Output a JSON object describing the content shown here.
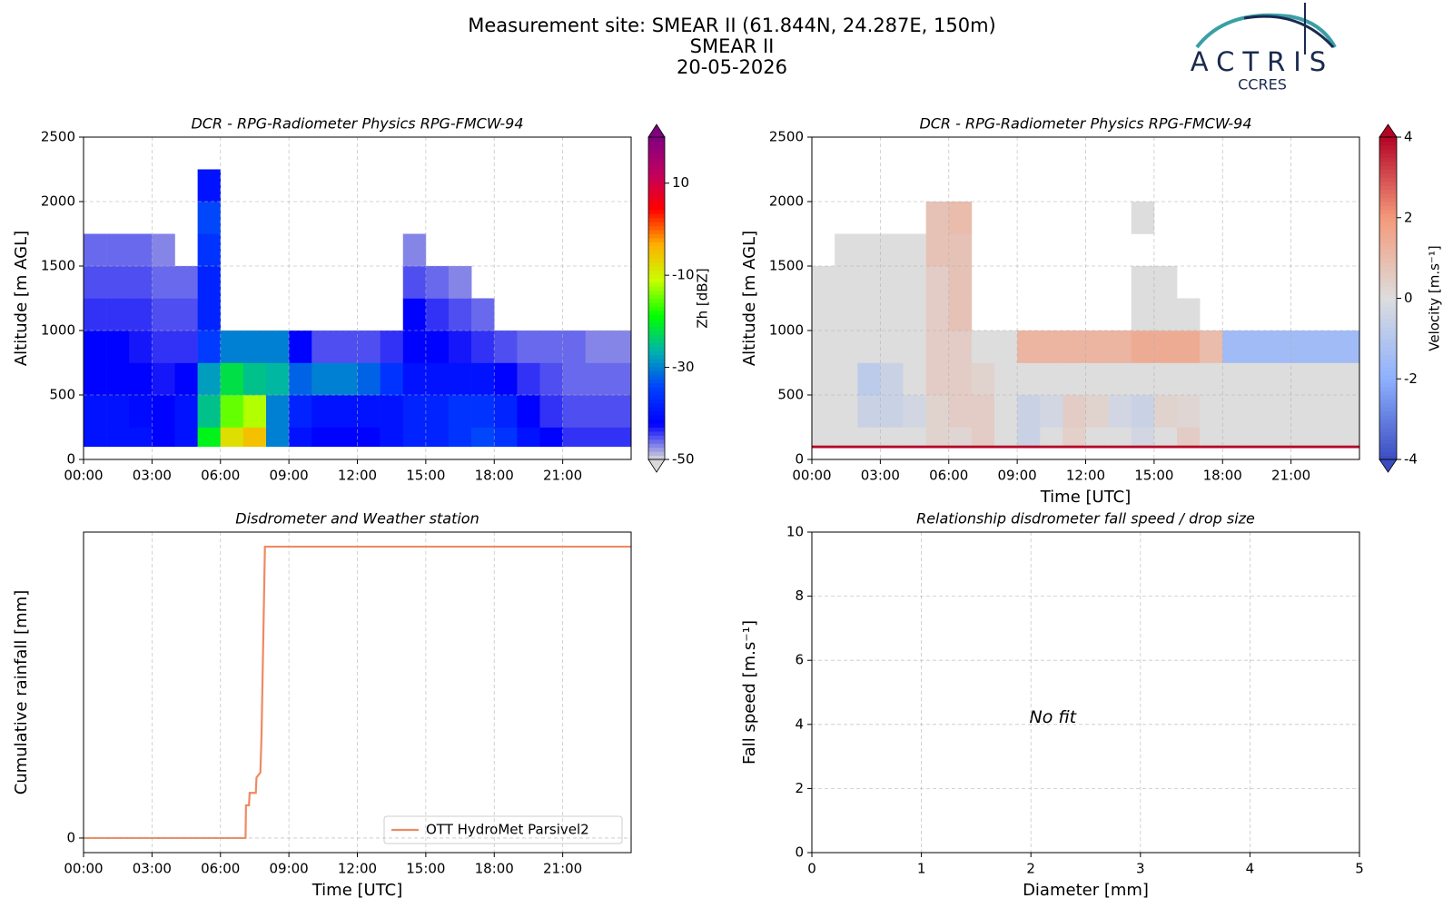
{
  "header": {
    "title": [
      "Measurement site: SMEAR II (61.844N, 24.287E, 150m)",
      "SMEAR II",
      "20-05-2026"
    ]
  },
  "logo": {
    "name": "ACTRIS",
    "subtitle": "CCRES"
  },
  "chart_data": [
    {
      "type": "heatmap",
      "title": "DCR - RPG-Radiometer Physics RPG-FMCW-94",
      "ylabel": "Altitude [m AGL]",
      "xlim": [
        0,
        24
      ],
      "xticks": [
        {
          "value": 0,
          "label": "00:00"
        },
        {
          "value": 3,
          "label": "03:00"
        },
        {
          "value": 6,
          "label": "06:00"
        },
        {
          "value": 9,
          "label": "09:00"
        },
        {
          "value": 12,
          "label": "12:00"
        },
        {
          "value": 15,
          "label": "15:00"
        },
        {
          "value": 18,
          "label": "18:00"
        },
        {
          "value": 21,
          "label": "21:00"
        }
      ],
      "ylim": [
        0,
        2500
      ],
      "yticks": [
        0,
        500,
        1000,
        1500,
        2000,
        2500
      ],
      "grid": true,
      "time_bins": [
        0,
        1,
        2,
        3,
        4,
        5,
        6,
        7,
        8,
        9,
        10,
        11,
        12,
        13,
        14,
        15,
        16,
        17,
        18,
        19,
        20,
        21,
        22,
        23,
        24
      ],
      "altitude_bins": [
        100,
        250,
        500,
        750,
        1000,
        1250,
        1500,
        1750,
        2000,
        2250,
        2500
      ],
      "z": [
        [
          -40,
          -40,
          -40,
          -42,
          -40,
          -20,
          -8,
          -5,
          -30,
          -40,
          -42,
          -42,
          -42,
          -40,
          -38,
          -38,
          -36,
          -34,
          -36,
          -40,
          -42,
          -44,
          -44,
          -44
        ],
        [
          -40,
          -40,
          -41,
          -42,
          -40,
          -25,
          -15,
          -12,
          -30,
          -38,
          -40,
          -40,
          -40,
          -40,
          -38,
          -38,
          -36,
          -36,
          -38,
          -42,
          -44,
          -45,
          -45,
          -45
        ],
        [
          -42,
          -42,
          -42,
          -43,
          -42,
          -28,
          -22,
          -25,
          -26,
          -32,
          -30,
          -30,
          -32,
          -36,
          -40,
          -40,
          -40,
          -40,
          -42,
          -44,
          -45,
          -46,
          -46,
          -46
        ],
        [
          -42,
          -42,
          -43,
          -44,
          -44,
          -35,
          -30,
          -30,
          -30,
          -42,
          -45,
          -45,
          -45,
          -44,
          -42,
          -42,
          -43,
          -44,
          -45,
          -46,
          -46,
          -46,
          -47,
          -47
        ],
        [
          -44,
          -44,
          -44,
          -45,
          -45,
          -38,
          null,
          null,
          null,
          null,
          null,
          null,
          null,
          null,
          -42,
          -44,
          -45,
          -46,
          null,
          null,
          null,
          null,
          null,
          null
        ],
        [
          -45,
          -45,
          -45,
          -46,
          -46,
          -38,
          null,
          null,
          null,
          null,
          null,
          null,
          null,
          null,
          -45,
          -46,
          -47,
          null,
          null,
          null,
          null,
          null,
          null,
          null
        ],
        [
          -46,
          -46,
          -46,
          -47,
          null,
          -36,
          null,
          null,
          null,
          null,
          null,
          null,
          null,
          null,
          -47,
          null,
          null,
          null,
          null,
          null,
          null,
          null,
          null,
          null
        ],
        [
          null,
          null,
          null,
          null,
          null,
          -34,
          null,
          null,
          null,
          null,
          null,
          null,
          null,
          null,
          null,
          null,
          null,
          null,
          null,
          null,
          null,
          null,
          null,
          null
        ],
        [
          null,
          null,
          null,
          null,
          null,
          -40,
          null,
          null,
          null,
          null,
          null,
          null,
          null,
          null,
          null,
          null,
          null,
          null,
          null,
          null,
          null,
          null,
          null,
          null
        ],
        [
          null,
          null,
          null,
          null,
          null,
          null,
          null,
          null,
          null,
          null,
          null,
          null,
          null,
          null,
          null,
          null,
          null,
          null,
          null,
          null,
          null,
          null,
          null,
          null
        ]
      ],
      "colorbar": {
        "label": "Zh [dBZ]",
        "lim": [
          -50,
          20
        ],
        "ticks": [
          -50,
          -30,
          -10,
          10
        ],
        "colors": [
          "#d9d9d9",
          "#0000ff",
          "#0040ff",
          "#00b0b0",
          "#00ff00",
          "#c8ff00",
          "#ffb000",
          "#ff0000",
          "#c00060",
          "#800080"
        ]
      }
    },
    {
      "type": "heatmap",
      "title": "DCR - RPG-Radiometer Physics RPG-FMCW-94",
      "ylabel": "Altitude [m AGL]",
      "xlabel": "Time [UTC]",
      "xlim": [
        0,
        24
      ],
      "xticks": [
        {
          "value": 0,
          "label": "00:00"
        },
        {
          "value": 3,
          "label": "03:00"
        },
        {
          "value": 6,
          "label": "06:00"
        },
        {
          "value": 9,
          "label": "09:00"
        },
        {
          "value": 12,
          "label": "12:00"
        },
        {
          "value": 15,
          "label": "15:00"
        },
        {
          "value": 18,
          "label": "18:00"
        },
        {
          "value": 21,
          "label": "21:00"
        }
      ],
      "ylim": [
        0,
        2500
      ],
      "yticks": [
        0,
        500,
        1000,
        1500,
        2000,
        2500
      ],
      "grid": true,
      "time_bins": [
        0,
        1,
        2,
        3,
        4,
        5,
        6,
        7,
        8,
        9,
        10,
        11,
        12,
        13,
        14,
        15,
        16,
        17,
        18,
        19,
        20,
        21,
        22,
        23,
        24
      ],
      "altitude_bins": [
        90,
        110,
        250,
        500,
        750,
        1000,
        1250,
        1500,
        1750,
        2000,
        2250,
        2500
      ],
      "z": [
        [
          4,
          4,
          4,
          4,
          4,
          4,
          4,
          4,
          4,
          4,
          4,
          4,
          4,
          4,
          4,
          4,
          4,
          4,
          4,
          4,
          4,
          4,
          4,
          4
        ],
        [
          0,
          0,
          0,
          0,
          0,
          0.3,
          0.2,
          0.5,
          0,
          -0.5,
          0,
          0.4,
          0,
          0,
          -0.3,
          0,
          0.5,
          0,
          0,
          0,
          0,
          0,
          0,
          0
        ],
        [
          0,
          0,
          -0.5,
          -0.5,
          -0.3,
          0.3,
          0.5,
          0.5,
          0,
          -0.5,
          -0.3,
          0.5,
          0.3,
          -0.3,
          -0.5,
          0.3,
          0.2,
          0,
          0,
          0,
          0,
          0,
          0,
          0
        ],
        [
          0,
          0,
          -0.8,
          -0.5,
          0,
          0.5,
          0.5,
          0.3,
          0,
          0,
          0,
          0,
          0,
          0,
          0,
          0,
          0,
          0,
          0,
          0,
          0,
          0,
          0,
          0
        ],
        [
          0,
          0,
          0,
          0,
          0,
          0.5,
          0.5,
          0,
          0,
          1.2,
          1.2,
          1.2,
          1.2,
          1.2,
          1.5,
          1.5,
          1.5,
          1,
          -1.5,
          -1.5,
          -1.5,
          -1.5,
          -1.5,
          -1.5
        ],
        [
          0,
          0,
          0,
          0,
          0,
          0.5,
          0.8,
          null,
          null,
          null,
          null,
          null,
          null,
          null,
          0,
          0,
          0,
          null,
          null,
          null,
          null,
          null,
          null,
          null
        ],
        [
          0,
          0,
          0,
          0,
          0,
          0.5,
          0.8,
          null,
          null,
          null,
          null,
          null,
          null,
          null,
          0,
          0,
          null,
          null,
          null,
          null,
          null,
          null,
          null,
          null
        ],
        [
          null,
          0,
          0,
          0,
          0,
          0.8,
          0.8,
          null,
          null,
          null,
          null,
          null,
          null,
          null,
          null,
          null,
          null,
          null,
          null,
          null,
          null,
          null,
          null,
          null
        ],
        [
          null,
          null,
          null,
          null,
          null,
          0.8,
          1,
          null,
          null,
          null,
          null,
          null,
          null,
          null,
          0,
          null,
          null,
          null,
          null,
          null,
          null,
          null,
          null,
          null
        ],
        [
          null,
          null,
          null,
          null,
          null,
          null,
          null,
          null,
          null,
          null,
          null,
          null,
          null,
          null,
          null,
          null,
          null,
          null,
          null,
          null,
          null,
          null,
          null,
          null
        ],
        [
          null,
          null,
          null,
          null,
          null,
          null,
          null,
          null,
          null,
          null,
          null,
          null,
          null,
          null,
          null,
          null,
          null,
          null,
          null,
          null,
          null,
          null,
          null,
          null
        ]
      ],
      "colorbar": {
        "label": "Velocity [m.s⁻¹]",
        "lim": [
          -4,
          4
        ],
        "ticks": [
          -4,
          -2,
          0,
          2,
          4
        ],
        "colors": [
          "#3b4cc0",
          "#8db0fe",
          "#dddddd",
          "#f49a7b",
          "#b40426"
        ]
      }
    },
    {
      "type": "line",
      "title": "Disdrometer and Weather station",
      "xlabel": "Time [UTC]",
      "ylabel": "Cumulative rainfall [mm]",
      "xlim": [
        0,
        24
      ],
      "xticks": [
        {
          "value": 0,
          "label": "00:00"
        },
        {
          "value": 3,
          "label": "03:00"
        },
        {
          "value": 6,
          "label": "06:00"
        },
        {
          "value": 9,
          "label": "09:00"
        },
        {
          "value": 12,
          "label": "12:00"
        },
        {
          "value": 15,
          "label": "15:00"
        },
        {
          "value": 18,
          "label": "18:00"
        },
        {
          "value": 21,
          "label": "21:00"
        }
      ],
      "ylim": [
        -0.2,
        4.2
      ],
      "yticks": [
        0
      ],
      "grid": true,
      "legend": "lower right",
      "x": [
        0,
        7.1,
        7.12,
        7.25,
        7.28,
        7.55,
        7.58,
        7.75,
        7.8,
        7.95,
        24
      ],
      "series": [
        {
          "name": "OTT HydroMet Parsivel2",
          "color": "#ef8a62",
          "values": [
            0,
            0,
            0.45,
            0.45,
            0.62,
            0.62,
            0.83,
            0.9,
            1.4,
            4,
            4
          ]
        }
      ]
    },
    {
      "type": "scatter",
      "title": "Relationship disdrometer fall speed / drop size",
      "xlabel": "Diameter [mm]",
      "ylabel": "Fall speed [m.s⁻¹]",
      "xlim": [
        0,
        5
      ],
      "xticks": [
        0,
        1,
        2,
        3,
        4,
        5
      ],
      "ylim": [
        0,
        10
      ],
      "yticks": [
        0,
        2,
        4,
        6,
        8,
        10
      ],
      "grid": true,
      "annotation": "No fit"
    }
  ]
}
